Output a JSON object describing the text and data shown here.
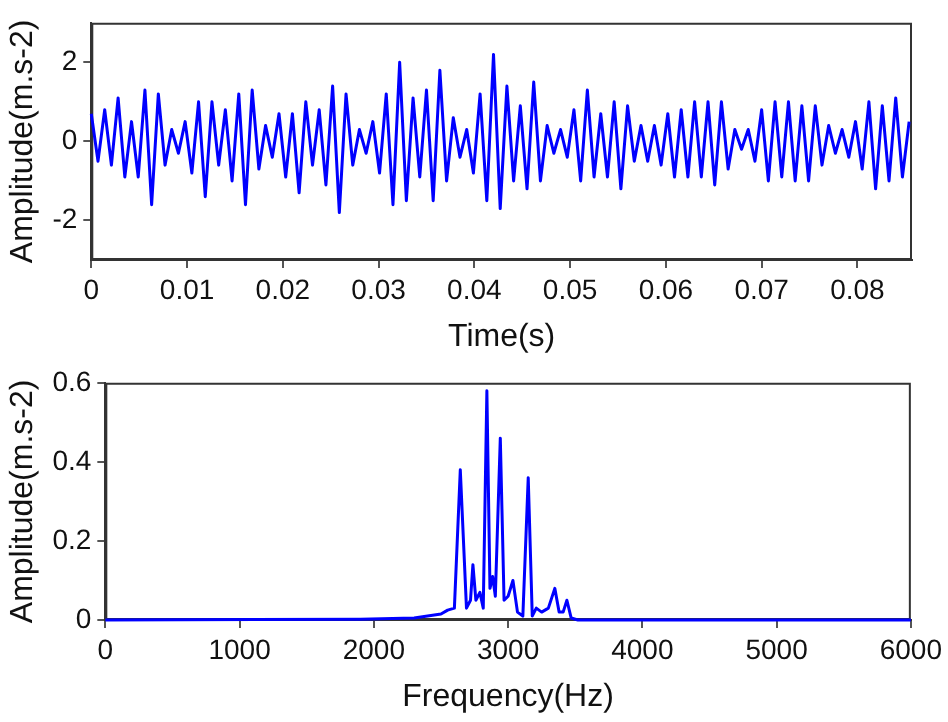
{
  "chart_data": [
    {
      "type": "line",
      "xlabel": "Time(s)",
      "ylabel": "Amplitude(m.s-2)",
      "xlim": [
        0,
        0.0857
      ],
      "xticks": [
        0,
        0.01,
        0.02,
        0.03,
        0.04,
        0.05,
        0.06,
        0.07,
        0.08
      ],
      "ylim": [
        -3,
        3
      ],
      "yticks": [
        -2,
        0,
        2
      ],
      "grid": false,
      "legend": false,
      "series": [
        {
          "color": "#0000ff",
          "x": [
            0,
            0.0007,
            0.0014,
            0.0021,
            0.0028,
            0.0035,
            0.0042,
            0.0049,
            0.0056,
            0.0063,
            0.007,
            0.0077,
            0.0084,
            0.0091,
            0.0098,
            0.0105,
            0.0112,
            0.0119,
            0.0126,
            0.0133,
            0.014,
            0.0147,
            0.0154,
            0.0161,
            0.0168,
            0.0175,
            0.0182,
            0.0189,
            0.0196,
            0.0203,
            0.021,
            0.0217,
            0.0224,
            0.0231,
            0.0238,
            0.0245,
            0.0252,
            0.0259,
            0.0266,
            0.0273,
            0.028,
            0.0287,
            0.0294,
            0.0301,
            0.0308,
            0.0315,
            0.0322,
            0.0329,
            0.0336,
            0.0343,
            0.035,
            0.0357,
            0.0364,
            0.0371,
            0.0378,
            0.0385,
            0.0392,
            0.0399,
            0.0406,
            0.0413,
            0.042,
            0.0427,
            0.0434,
            0.0441,
            0.0448,
            0.0455,
            0.0462,
            0.0469,
            0.0476,
            0.0483,
            0.049,
            0.0497,
            0.0504,
            0.0511,
            0.0518,
            0.0525,
            0.0532,
            0.0539,
            0.0546,
            0.0553,
            0.056,
            0.0567,
            0.0574,
            0.0581,
            0.0588,
            0.0595,
            0.0602,
            0.0609,
            0.0616,
            0.0623,
            0.063,
            0.0637,
            0.0644,
            0.0651,
            0.0658,
            0.0665,
            0.0672,
            0.0679,
            0.0686,
            0.0693,
            0.07,
            0.0707,
            0.0714,
            0.0721,
            0.0728,
            0.0735,
            0.0742,
            0.0749,
            0.0756,
            0.0763,
            0.077,
            0.0777,
            0.0784,
            0.0791,
            0.0798,
            0.0805,
            0.0812,
            0.0819,
            0.0826,
            0.0833,
            0.084,
            0.0847,
            0.0854
          ],
          "values": [
            0.7,
            -0.5,
            0.8,
            -0.6,
            1.1,
            -0.9,
            0.5,
            -0.9,
            1.3,
            -1.6,
            1.2,
            -0.6,
            0.3,
            -0.3,
            0.5,
            -0.8,
            1.0,
            -1.4,
            1.0,
            -0.6,
            0.8,
            -1.0,
            1.2,
            -1.6,
            1.3,
            -0.7,
            0.4,
            -0.4,
            0.7,
            -0.9,
            0.7,
            -1.3,
            1.0,
            -0.6,
            0.8,
            -1.1,
            1.4,
            -1.8,
            1.2,
            -0.6,
            0.3,
            -0.3,
            0.5,
            -0.8,
            1.2,
            -1.6,
            2.0,
            -1.5,
            1.1,
            -0.9,
            1.3,
            -1.5,
            1.8,
            -1.0,
            0.6,
            -0.4,
            0.3,
            -0.8,
            1.2,
            -1.5,
            2.2,
            -1.7,
            1.4,
            -1.0,
            0.9,
            -1.2,
            1.5,
            -1.0,
            0.4,
            -0.3,
            0.3,
            -0.4,
            0.8,
            -1.0,
            1.3,
            -0.9,
            0.7,
            -0.9,
            1.0,
            -1.2,
            0.9,
            -0.5,
            0.4,
            -0.5,
            0.4,
            -0.6,
            0.7,
            -0.9,
            0.8,
            -0.9,
            1.0,
            -0.9,
            1.0,
            -1.1,
            1.0,
            -0.7,
            0.3,
            -0.2,
            0.3,
            -0.5,
            0.8,
            -1.0,
            1.0,
            -0.9,
            1.0,
            -1.0,
            0.9,
            -1.0,
            0.9,
            -0.6,
            0.4,
            -0.3,
            0.3,
            -0.4,
            0.5,
            -0.7,
            1.0,
            -1.2,
            0.9,
            -1.0,
            1.1,
            -0.9,
            0.5
          ]
        }
      ]
    },
    {
      "type": "line",
      "xlabel": "Frequency(Hz)",
      "ylabel": "Amplitude(m.s-2)",
      "xlim": [
        0,
        6000
      ],
      "xticks": [
        0,
        1000,
        2000,
        3000,
        4000,
        5000,
        6000
      ],
      "ylim": [
        0,
        0.6
      ],
      "yticks": [
        0,
        0.2,
        0.4,
        0.6
      ],
      "grid": false,
      "legend": false,
      "series": [
        {
          "color": "#0000ff",
          "x": [
            0,
            1900,
            2300,
            2500,
            2550,
            2600,
            2644,
            2690,
            2720,
            2738,
            2760,
            2790,
            2815,
            2842,
            2865,
            2885,
            2905,
            2942,
            2970,
            3000,
            3036,
            3070,
            3110,
            3150,
            3180,
            3210,
            3250,
            3300,
            3348,
            3380,
            3410,
            3438,
            3470,
            3520,
            6000
          ],
          "values": [
            0,
            0.002,
            0.005,
            0.015,
            0.025,
            0.03,
            0.38,
            0.03,
            0.05,
            0.14,
            0.05,
            0.07,
            0.03,
            0.58,
            0.08,
            0.11,
            0.06,
            0.46,
            0.05,
            0.06,
            0.1,
            0.02,
            0.01,
            0.36,
            0.01,
            0.03,
            0.02,
            0.03,
            0.08,
            0.02,
            0.02,
            0.05,
            0.005,
            0,
            0
          ]
        }
      ]
    }
  ]
}
